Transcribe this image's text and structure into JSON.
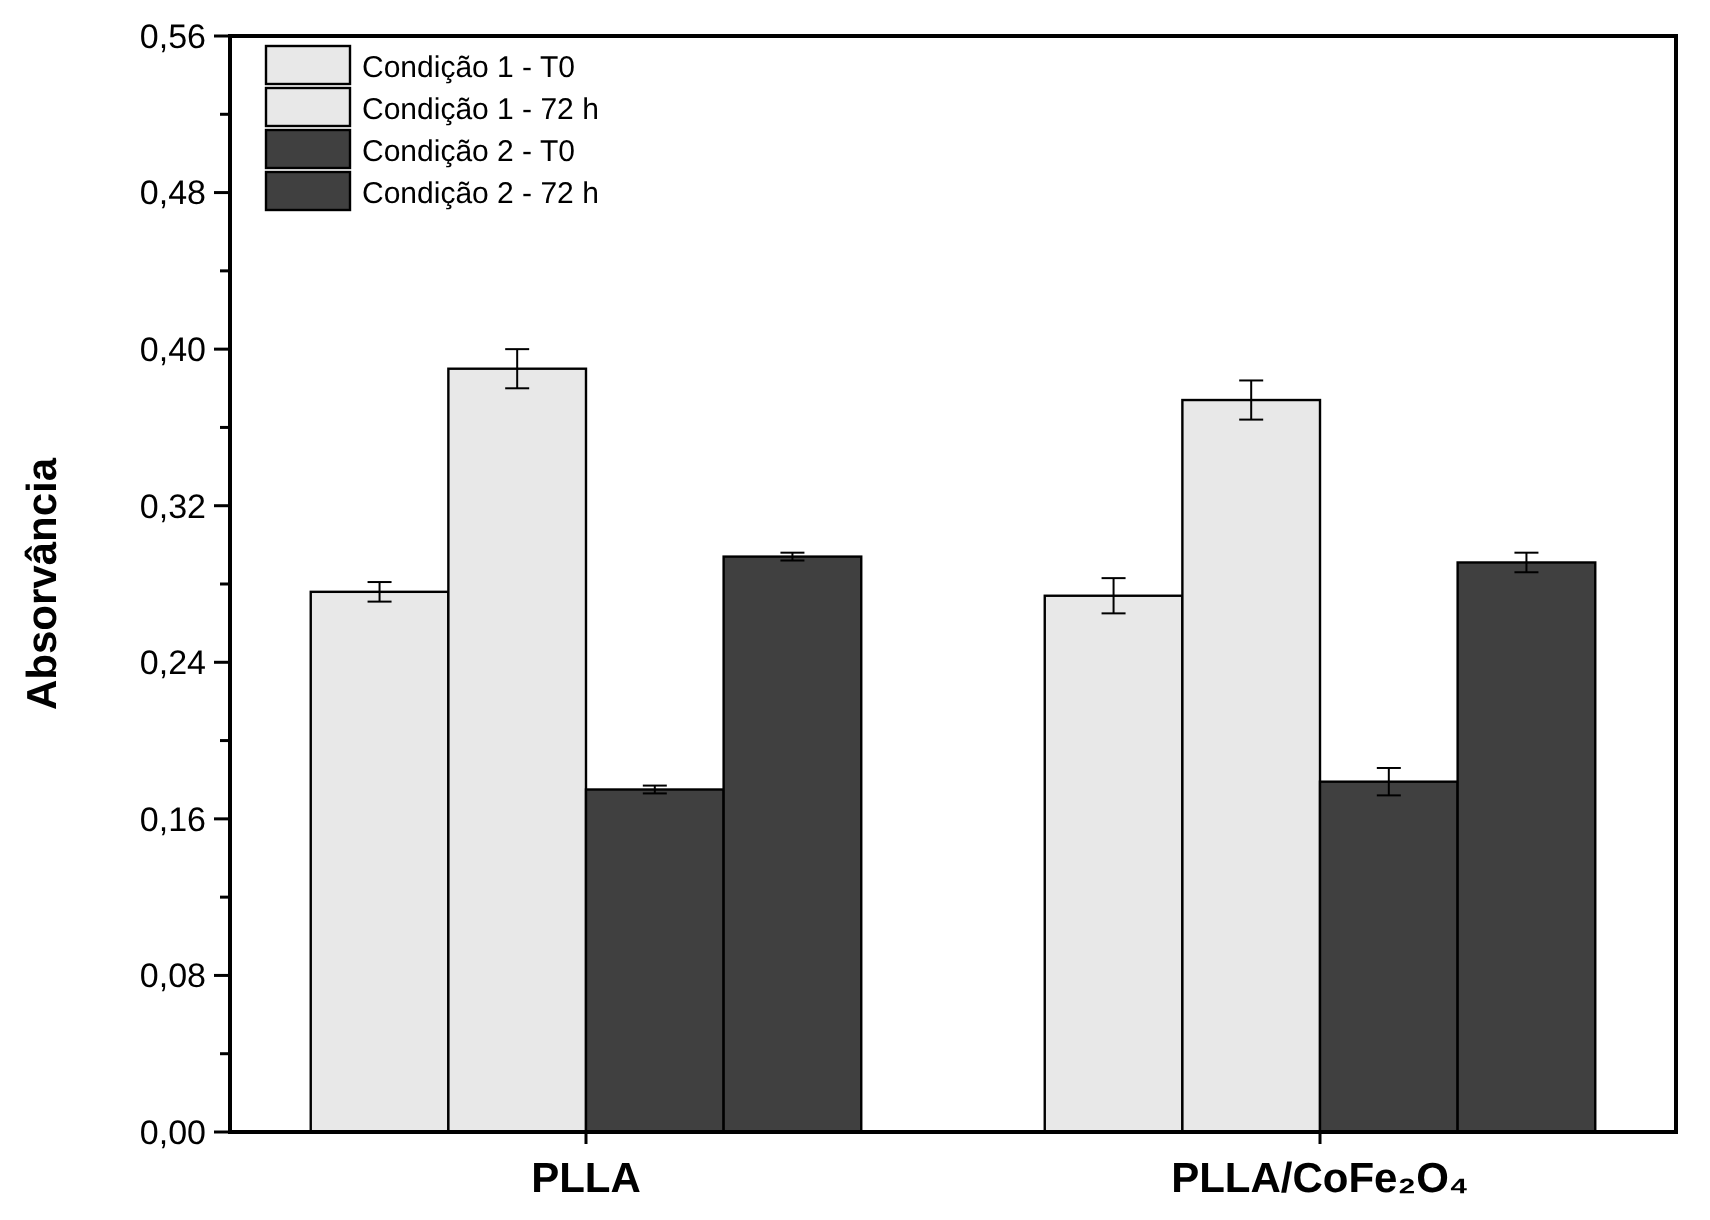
{
  "chart_data": {
    "type": "bar",
    "ylabel": "Absorvância",
    "categories": [
      "PLLA",
      "PLLA/CoFe₂O₄"
    ],
    "series": [
      {
        "name": "Condição 1 - T0",
        "color": "#e8e8e8",
        "values": [
          0.276,
          0.274
        ],
        "errors": [
          0.005,
          0.009
        ]
      },
      {
        "name": "Condição 1 - 72 h",
        "color": "#e8e8e8",
        "values": [
          0.39,
          0.374
        ],
        "errors": [
          0.01,
          0.01
        ]
      },
      {
        "name": "Condição 2 - T0",
        "color": "#404040",
        "values": [
          0.175,
          0.179
        ],
        "errors": [
          0.002,
          0.007
        ]
      },
      {
        "name": "Condição 2 - 72 h",
        "color": "#404040",
        "values": [
          0.294,
          0.291
        ],
        "errors": [
          0.002,
          0.005
        ]
      }
    ],
    "ylim": [
      0,
      0.56
    ],
    "yticks": [
      {
        "value": 0,
        "label": "0,00"
      },
      {
        "value": 0.04,
        "label": null
      },
      {
        "value": 0.08,
        "label": "0,08"
      },
      {
        "value": 0.12,
        "label": null
      },
      {
        "value": 0.16,
        "label": "0,16"
      },
      {
        "value": 0.2,
        "label": null
      },
      {
        "value": 0.24,
        "label": "0,24"
      },
      {
        "value": 0.28,
        "label": null
      },
      {
        "value": 0.32,
        "label": "0,32"
      },
      {
        "value": 0.36,
        "label": null
      },
      {
        "value": 0.4,
        "label": "0,40"
      },
      {
        "value": 0.44,
        "label": null
      },
      {
        "value": 0.48,
        "label": "0,48"
      },
      {
        "value": 0.52,
        "label": null
      },
      {
        "value": 0.56,
        "label": "0,56"
      }
    ],
    "legend": "top left",
    "grid": false
  }
}
